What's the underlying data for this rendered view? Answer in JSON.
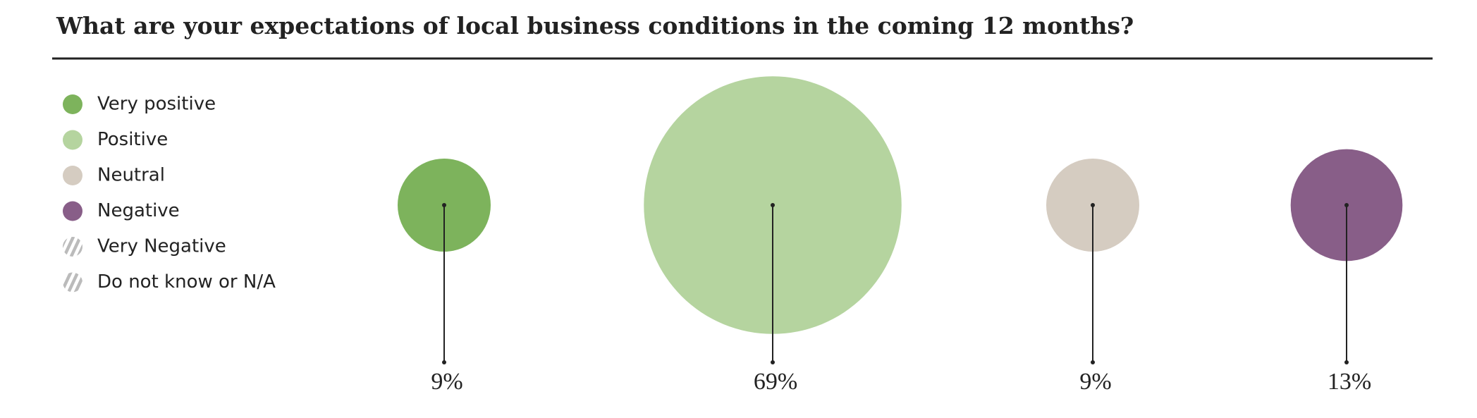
{
  "chart_data": {
    "type": "bubble",
    "title": "What are your expectations of local business conditions in the coming 12 months?",
    "categories": [
      "Very positive",
      "Positive",
      "Neutral",
      "Negative",
      "Very Negative",
      "Do not know or N/A"
    ],
    "colors": [
      "#7db35c",
      "#b5d49f",
      "#d5ccc1",
      "#885e88",
      null,
      null
    ],
    "values": [
      9,
      69,
      9,
      13,
      null,
      null
    ],
    "value_labels": [
      "9%",
      "69%",
      "9%",
      "13%",
      null,
      null
    ]
  }
}
